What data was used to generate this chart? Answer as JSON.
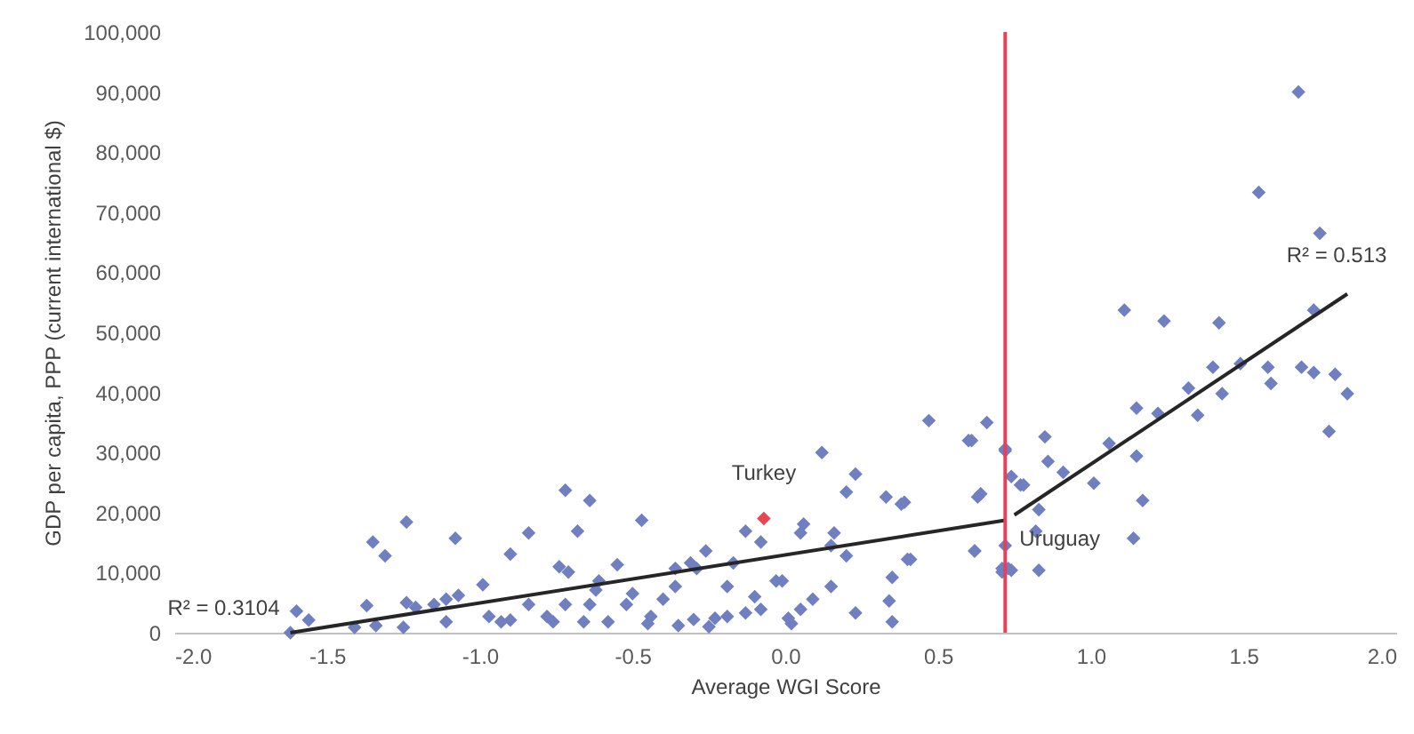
{
  "chart_data": {
    "type": "scatter",
    "xlabel": "Average WGI Score",
    "ylabel": "GDP per capita, PPP (current international $)",
    "xlim": [
      -2.0,
      2.0
    ],
    "xticks": [
      {
        "value": -2,
        "label": "-2.0"
      },
      {
        "value": -1.5,
        "label": "-1.5"
      },
      {
        "value": -1,
        "label": "-1.0"
      },
      {
        "value": -0.5,
        "label": "-0.5"
      },
      {
        "value": 0,
        "label": "0.0"
      },
      {
        "value": 0.5,
        "label": "0.5"
      },
      {
        "value": 1,
        "label": "1.0"
      },
      {
        "value": 1.5,
        "label": "1.5"
      },
      {
        "value": 2,
        "label": "2.0"
      }
    ],
    "ylim": [
      0,
      100000
    ],
    "yticks": [
      {
        "value": 0,
        "label": "0"
      },
      {
        "value": 10000,
        "label": "10,000"
      },
      {
        "value": 20000,
        "label": "20,000"
      },
      {
        "value": 30000,
        "label": "30,000"
      },
      {
        "value": 40000,
        "label": "40,000"
      },
      {
        "value": 50000,
        "label": "50,000"
      },
      {
        "value": 60000,
        "label": "60,000"
      },
      {
        "value": 70000,
        "label": "70,000"
      },
      {
        "value": 80000,
        "label": "80,000"
      },
      {
        "value": 90000,
        "label": "90,000"
      },
      {
        "value": 100000,
        "label": "100,000"
      }
    ],
    "grid": false,
    "marker": "diamond",
    "series": [
      {
        "type": "scatter",
        "color": "#6f7fc0",
        "x": [
          0.47,
          0.66,
          0.6,
          0.72,
          0.12,
          0.23,
          0.2,
          0.33,
          0.39,
          0.63,
          0.77,
          -0.64,
          -0.47,
          -0.13,
          -0.08,
          0.06,
          0.05,
          0.16,
          0.15,
          0.2,
          0.41,
          0.62,
          0.71,
          0.73,
          0.35,
          0.34,
          0.23,
          0.15,
          0.09,
          0.05,
          0.01,
          -0.03,
          -0.01,
          -0.13,
          -0.08,
          -0.19,
          -0.19,
          -0.26,
          -0.29,
          -0.31,
          -0.36,
          -0.36,
          -0.4,
          -0.44,
          -0.35,
          -0.52,
          -0.58,
          -0.55,
          -0.61,
          -0.23,
          -0.17,
          1.11,
          1.24,
          1.42,
          1.73,
          1.4,
          1.49,
          1.58,
          1.59,
          1.69,
          1.73,
          1.8,
          1.84,
          1.78,
          1.43,
          1.32,
          1.35,
          1.22,
          1.15,
          1.15,
          1.17,
          1.14,
          1.06,
          1.01,
          0.85,
          0.86,
          0.91,
          0.83,
          0.82,
          0.83,
          0.78,
          0.74,
          0.72,
          0.72,
          0.71,
          0.74,
          0.62,
          0.64,
          0.61,
          0.38,
          0.4,
          0.35,
          1.68,
          1.55,
          1.75,
          -0.72,
          -1.24,
          -1.35,
          -1.31,
          -1.08,
          -0.84,
          -0.68,
          -0.9,
          -0.74,
          -0.71,
          -0.99,
          -1.6,
          -1.56,
          -1.62,
          -1.37,
          -1.41,
          -1.34,
          -1.24,
          -1.21,
          -1.25,
          -1.15,
          -1.11,
          -1.07,
          -1.11,
          -0.97,
          -0.93,
          -0.9,
          -0.84,
          -0.78,
          -0.72,
          -0.76,
          -0.66,
          -0.62,
          -0.64,
          -0.5,
          -0.45,
          -0.3,
          -0.25,
          -0.1,
          0.02
        ],
        "values": [
          35300,
          35000,
          32000,
          30600,
          30000,
          26400,
          23400,
          22600,
          21700,
          22600,
          24600,
          22000,
          18700,
          16900,
          15100,
          18100,
          16600,
          16600,
          14500,
          12800,
          12200,
          13600,
          10700,
          10700,
          9200,
          5300,
          3300,
          7700,
          5600,
          3900,
          2400,
          8600,
          8600,
          3300,
          3900,
          2700,
          7700,
          13600,
          10700,
          11600,
          10700,
          7700,
          5600,
          2700,
          1200,
          4700,
          1800,
          11300,
          8600,
          2400,
          11600,
          53700,
          51900,
          51600,
          53700,
          44200,
          44800,
          44200,
          41500,
          44200,
          43300,
          43000,
          39800,
          33500,
          39800,
          40700,
          36200,
          36500,
          37400,
          29400,
          22000,
          15700,
          31500,
          24900,
          32600,
          28500,
          26700,
          20500,
          16900,
          10400,
          24600,
          26000,
          30300,
          14500,
          10100,
          10400,
          13600,
          23100,
          32000,
          21400,
          12200,
          1800,
          90000,
          73300,
          66500,
          23700,
          18400,
          15100,
          12800,
          15700,
          16600,
          16900,
          13100,
          11000,
          10100,
          8000,
          3600,
          2100,
          0,
          4500,
          900,
          1200,
          5000,
          4200,
          900,
          4700,
          5600,
          6200,
          1800,
          2700,
          1800,
          2100,
          4700,
          2700,
          4700,
          1800,
          1800,
          7100,
          4700,
          6500,
          1500,
          2200,
          1000,
          6000,
          1500
        ]
      },
      {
        "type": "scatter",
        "color": "#e8474f",
        "x": [
          -0.07
        ],
        "values": [
          19000
        ]
      },
      {
        "type": "line",
        "marker": "none",
        "color": "#262626",
        "x": [
          -1.62,
          0.72
        ],
        "values": [
          0,
          18700
        ]
      },
      {
        "type": "line",
        "marker": "none",
        "color": "#262626",
        "x": [
          0.75,
          1.84
        ],
        "values": [
          19600,
          56400
        ]
      }
    ],
    "ref_lines": [
      {
        "axis": "x",
        "value": 0.72,
        "color": "#e0435a"
      }
    ],
    "annotations": [
      {
        "text": "Turkey",
        "x": -0.07,
        "y": 19000
      },
      {
        "text": "Uruguay",
        "x": 0.72,
        "y": 18700
      },
      {
        "text": "R² = 0.3104",
        "x": -1.62,
        "y": 0
      },
      {
        "text": "R² = 0.513",
        "x": 1.84,
        "y": 56400
      }
    ]
  }
}
